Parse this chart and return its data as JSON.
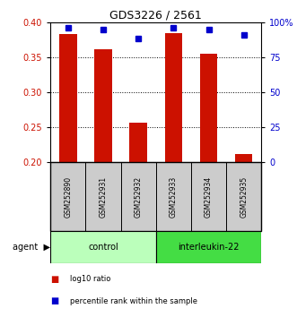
{
  "title": "GDS3226 / 2561",
  "samples": [
    "GSM252890",
    "GSM252931",
    "GSM252932",
    "GSM252933",
    "GSM252934",
    "GSM252935"
  ],
  "log10_ratio": [
    0.383,
    0.361,
    0.256,
    0.384,
    0.355,
    0.211
  ],
  "percentile_rank": [
    96,
    95,
    88,
    96,
    95,
    91
  ],
  "groups": [
    {
      "label": "control",
      "indices": [
        0,
        1,
        2
      ],
      "color": "#bbffbb"
    },
    {
      "label": "interleukin-22",
      "indices": [
        3,
        4,
        5
      ],
      "color": "#44dd44"
    }
  ],
  "ylim_left": [
    0.2,
    0.4
  ],
  "ylim_right": [
    0,
    100
  ],
  "yticks_left": [
    0.2,
    0.25,
    0.3,
    0.35,
    0.4
  ],
  "yticks_right": [
    0,
    25,
    50,
    75,
    100
  ],
  "grid_lines": [
    0.25,
    0.3,
    0.35
  ],
  "bar_color": "#cc1100",
  "dot_color": "#0000cc",
  "bar_width": 0.5,
  "sample_box_color": "#cccccc",
  "agent_label": "agent",
  "legend_items": [
    {
      "color": "#cc1100",
      "label": "log10 ratio"
    },
    {
      "color": "#0000cc",
      "label": "percentile rank within the sample"
    }
  ]
}
